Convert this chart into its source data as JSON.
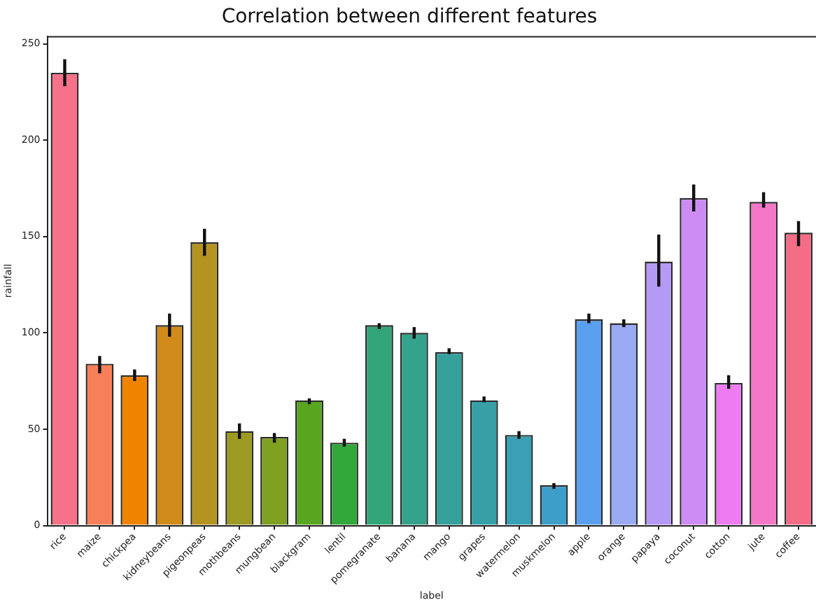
{
  "chart_data": {
    "type": "bar",
    "title": "Correlation between different features",
    "xlabel": "label",
    "ylabel": "rainfall",
    "categories": [
      "rice",
      "maize",
      "chickpea",
      "kidneybeans",
      "pigeonpeas",
      "mothbeans",
      "mungbean",
      "blackgram",
      "lentil",
      "pomegranate",
      "banana",
      "mango",
      "grapes",
      "watermelon",
      "muskmelon",
      "apple",
      "orange",
      "papaya",
      "coconut",
      "cotton",
      "jute",
      "coffee"
    ],
    "values": [
      235,
      84,
      78,
      104,
      147,
      49,
      46,
      65,
      43,
      104,
      100,
      90,
      65,
      47,
      21,
      107,
      105,
      137,
      170,
      74,
      168,
      152
    ],
    "errors": [
      [
        228,
        242
      ],
      [
        79,
        88
      ],
      [
        75,
        81
      ],
      [
        98,
        110
      ],
      [
        140,
        154
      ],
      [
        45,
        53
      ],
      [
        43,
        48
      ],
      [
        63,
        66
      ],
      [
        41,
        45
      ],
      [
        102,
        105
      ],
      [
        97,
        103
      ],
      [
        89,
        92
      ],
      [
        64,
        67
      ],
      [
        45,
        49
      ],
      [
        19,
        22
      ],
      [
        105,
        110
      ],
      [
        103,
        107
      ],
      [
        124,
        151
      ],
      [
        163,
        177
      ],
      [
        71,
        78
      ],
      [
        165,
        173
      ],
      [
        145,
        158
      ]
    ],
    "colors": [
      "#f77189",
      "#f7805a",
      "#f08400",
      "#d08b1a",
      "#b59320",
      "#9c9a22",
      "#80a022",
      "#58a51f",
      "#32a83a",
      "#33a679",
      "#35a38c",
      "#36a19a",
      "#37a0a6",
      "#39a0b5",
      "#3c9ec9",
      "#5aa0f0",
      "#9aaaf3",
      "#b59af5",
      "#cd8cf3",
      "#ed7cf2",
      "#f577c8",
      "#f46c86"
    ],
    "ylim": [
      0,
      254
    ],
    "yticks": [
      0,
      50,
      100,
      150,
      200,
      250
    ]
  }
}
